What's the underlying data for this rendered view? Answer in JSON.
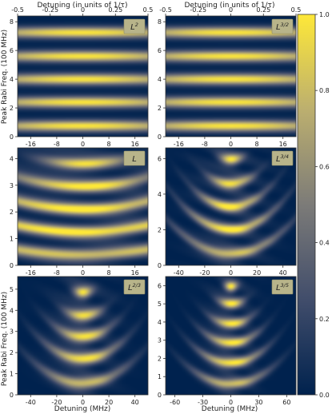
{
  "figure": {
    "top_axis_label": "Detuning (in units of 1/τ)",
    "top_ticks": [
      "-0.5",
      "-0.25",
      "0",
      "0.25",
      "0.5"
    ],
    "ylabel": "Peak Rabi Freq. (100 MHz)",
    "xlabel": "Detuning (MHz)",
    "colorbar_ticks": [
      "0.0",
      "0.2",
      "0.4",
      "0.6",
      "0.8",
      "1.0"
    ],
    "colormap": [
      "#00224e",
      "#414d6b",
      "#7c7b78",
      "#bcaf6f",
      "#fee838"
    ]
  },
  "chart_data": [
    {
      "type": "heatmap",
      "label_html": "L<sup>2</sup>",
      "label_text": "L2",
      "xticks": [
        -16,
        -8,
        0,
        8,
        16
      ],
      "xlim": [
        -20,
        20
      ],
      "yticks": [
        0,
        2,
        4,
        6,
        8
      ],
      "ylim": [
        0,
        8.4
      ],
      "pattern": "stripes",
      "bands": [
        0.75,
        2.4,
        4.0,
        5.6,
        7.25
      ],
      "bandwidth": 0.28,
      "xspread": 12,
      "zlim": [
        0,
        1
      ]
    },
    {
      "type": "heatmap",
      "label_html": "L<sup>3/2</sup>",
      "label_text": "L3/2",
      "xticks": [
        -16,
        -8,
        0,
        8,
        16
      ],
      "xlim": [
        -20,
        20
      ],
      "yticks": [
        0,
        2,
        4,
        6,
        8
      ],
      "ylim": [
        0,
        8.4
      ],
      "pattern": "stripes",
      "bands": [
        0.75,
        2.4,
        4.0,
        5.6,
        7.25
      ],
      "bandwidth": 0.28,
      "xspread": 12,
      "zlim": [
        0,
        1
      ]
    },
    {
      "type": "heatmap",
      "label_html": "L",
      "label_text": "L",
      "xticks": [
        -16,
        -8,
        0,
        8,
        16
      ],
      "xlim": [
        -20,
        20
      ],
      "yticks": [
        0,
        1,
        2,
        3,
        4
      ],
      "ylim": [
        0,
        4.4
      ],
      "pattern": "arcs",
      "bands": [
        0.4,
        1.25,
        2.1,
        2.95,
        3.8
      ],
      "bandwidth": 0.16,
      "xspread": 9,
      "curv": 0.0005,
      "zlim": [
        0,
        1
      ]
    },
    {
      "type": "heatmap",
      "label_html": "L<sup>3/4</sup>",
      "label_text": "L3/4",
      "xticks": [
        -40,
        -20,
        0,
        20,
        40
      ],
      "xlim": [
        -50,
        50
      ],
      "yticks": [
        0,
        2,
        4,
        6
      ],
      "ylim": [
        0,
        6.6
      ],
      "pattern": "arcs",
      "bands": [
        0.65,
        2.0,
        3.3,
        4.6,
        5.95
      ],
      "bandwidth": 0.22,
      "xspread": 6,
      "curv": 0.0008,
      "zlim": [
        0,
        1
      ]
    },
    {
      "type": "heatmap",
      "label_html": "L<sup>2/3</sup>",
      "label_text": "L2/3",
      "xticks": [
        -40,
        -20,
        0,
        20,
        40
      ],
      "xlim": [
        -50,
        50
      ],
      "yticks": [
        0,
        1,
        2,
        3,
        4,
        5
      ],
      "ylim": [
        0,
        5.6
      ],
      "pattern": "arcs",
      "bands": [
        0.55,
        1.7,
        2.75,
        3.75,
        4.85
      ],
      "bandwidth": 0.2,
      "xspread": 5,
      "curv": 0.0007,
      "zlim": [
        0,
        1
      ]
    },
    {
      "type": "heatmap",
      "label_html": "L<sup>3/5</sup>",
      "label_text": "L3/5",
      "xticks": [
        -60,
        -30,
        0,
        30,
        60
      ],
      "xlim": [
        -70,
        70
      ],
      "yticks": [
        0,
        1,
        2,
        3,
        4,
        5,
        6
      ],
      "ylim": [
        0,
        6.5
      ],
      "pattern": "arcs",
      "bands": [
        0.6,
        1.75,
        2.85,
        3.9,
        5.0,
        5.95
      ],
      "bandwidth": 0.2,
      "xspread": 5,
      "curv": 0.00045,
      "zlim": [
        0,
        1
      ]
    }
  ]
}
